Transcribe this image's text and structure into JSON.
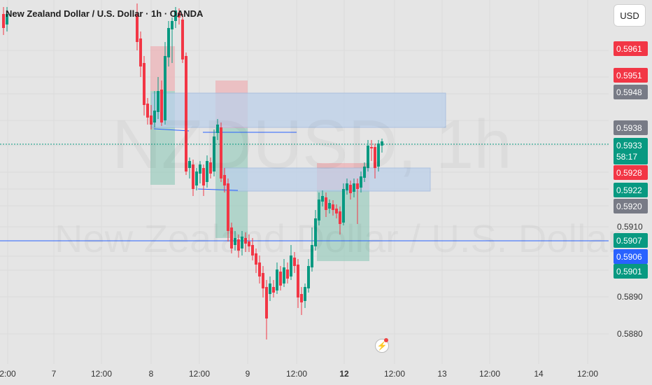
{
  "header": {
    "title": "New Zealand Dollar / U.S. Dollar · 1h · OANDA"
  },
  "currency_button": "USD",
  "watermark": {
    "symbol": "NZDUSD, 1h",
    "name": "New Zealand Dollar / U.S. Dollar"
  },
  "price_axis": {
    "ticks": [
      "0.5910",
      "0.5890",
      "0.5880"
    ],
    "labels": [
      {
        "text": "0.5961",
        "color": "#f23645"
      },
      {
        "text": "0.5951",
        "color": "#f23645"
      },
      {
        "text": "0.5948",
        "color": "#787b86"
      },
      {
        "text": "0.5938",
        "color": "#787b86"
      },
      {
        "text": "0.5933",
        "sub": "58:17",
        "color": "#089981"
      },
      {
        "text": "0.5928",
        "color": "#f23645"
      },
      {
        "text": "0.5922",
        "color": "#089981"
      },
      {
        "text": "0.5920",
        "color": "#787b86"
      },
      {
        "text": "0.5907",
        "color": "#089981"
      },
      {
        "text": "0.5906",
        "color": "#2962ff"
      },
      {
        "text": "0.5901",
        "color": "#089981"
      }
    ]
  },
  "time_axis": {
    "ticks": [
      {
        "label": "2:00",
        "bold": false
      },
      {
        "label": "7",
        "bold": false
      },
      {
        "label": "12:00",
        "bold": false
      },
      {
        "label": "8",
        "bold": false
      },
      {
        "label": "12:00",
        "bold": false
      },
      {
        "label": "9",
        "bold": false
      },
      {
        "label": "12:00",
        "bold": false
      },
      {
        "label": "12",
        "bold": true
      },
      {
        "label": "12:00",
        "bold": false
      },
      {
        "label": "13",
        "bold": false
      },
      {
        "label": "12:00",
        "bold": false
      },
      {
        "label": "14",
        "bold": false
      },
      {
        "label": "12:00",
        "bold": false
      }
    ]
  },
  "colors": {
    "up": "#089981",
    "down": "#f23645",
    "zone": "#bcd0ea",
    "line": "#2962ff"
  }
}
